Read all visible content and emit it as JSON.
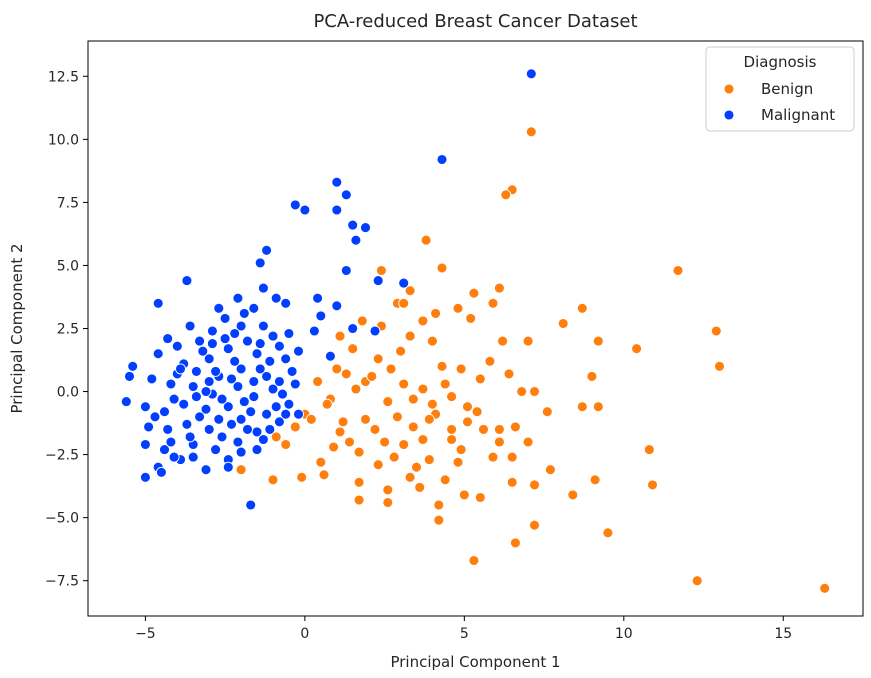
{
  "chart_data": {
    "type": "scatter",
    "title": "PCA-reduced Breast Cancer Dataset",
    "xlabel": "Principal Component 1",
    "ylabel": "Principal Component 2",
    "xlim": [
      -6.8,
      17.5
    ],
    "ylim": [
      -8.9,
      13.9
    ],
    "xticks": [
      -5,
      0,
      5,
      10,
      15
    ],
    "xtick_labels": [
      "−5",
      "0",
      "5",
      "10",
      "15"
    ],
    "yticks": [
      -7.5,
      -5.0,
      -2.5,
      0.0,
      2.5,
      5.0,
      7.5,
      10.0,
      12.5
    ],
    "ytick_labels": [
      "−7.5",
      "−5.0",
      "−2.5",
      "0.0",
      "2.5",
      "5.0",
      "7.5",
      "10.0",
      "12.5"
    ],
    "grid": false,
    "legend": {
      "title": "Diagnosis",
      "placement": "top-right",
      "entries": [
        "Benign",
        "Malignant"
      ]
    },
    "series": [
      {
        "name": "Benign",
        "color": "#ff7f0e",
        "points": [
          [
            7.1,
            10.3
          ],
          [
            6.5,
            8.0
          ],
          [
            6.3,
            7.8
          ],
          [
            3.8,
            6.0
          ],
          [
            11.7,
            4.8
          ],
          [
            6.1,
            4.1
          ],
          [
            4.3,
            4.9
          ],
          [
            2.4,
            4.8
          ],
          [
            5.3,
            3.9
          ],
          [
            3.3,
            4.0
          ],
          [
            2.9,
            3.5
          ],
          [
            4.8,
            3.3
          ],
          [
            5.9,
            3.5
          ],
          [
            8.7,
            3.3
          ],
          [
            12.9,
            2.4
          ],
          [
            8.1,
            2.7
          ],
          [
            3.7,
            2.8
          ],
          [
            2.4,
            2.6
          ],
          [
            1.8,
            2.8
          ],
          [
            4.0,
            2.0
          ],
          [
            6.2,
            2.0
          ],
          [
            7.0,
            2.0
          ],
          [
            9.2,
            2.0
          ],
          [
            10.4,
            1.7
          ],
          [
            13.0,
            1.0
          ],
          [
            1.5,
            1.7
          ],
          [
            2.3,
            1.3
          ],
          [
            3.0,
            1.6
          ],
          [
            4.3,
            1.0
          ],
          [
            5.8,
            1.2
          ],
          [
            6.4,
            0.7
          ],
          [
            9.0,
            0.6
          ],
          [
            1.0,
            0.9
          ],
          [
            1.9,
            0.4
          ],
          [
            3.1,
            0.3
          ],
          [
            4.6,
            -0.2
          ],
          [
            5.5,
            0.5
          ],
          [
            7.2,
            0.0
          ],
          [
            0.4,
            0.4
          ],
          [
            0.8,
            -0.3
          ],
          [
            1.6,
            0.1
          ],
          [
            2.6,
            -0.4
          ],
          [
            4.1,
            -0.9
          ],
          [
            5.1,
            -0.6
          ],
          [
            7.6,
            -0.8
          ],
          [
            8.7,
            -0.6
          ],
          [
            9.2,
            -0.6
          ],
          [
            1.2,
            -1.2
          ],
          [
            2.2,
            -1.5
          ],
          [
            3.4,
            -1.4
          ],
          [
            4.6,
            -1.5
          ],
          [
            6.1,
            -1.5
          ],
          [
            6.6,
            -1.4
          ],
          [
            0.0,
            -0.9
          ],
          [
            0.9,
            -2.2
          ],
          [
            2.5,
            -2.0
          ],
          [
            3.7,
            -1.9
          ],
          [
            4.9,
            -2.3
          ],
          [
            6.1,
            -2.0
          ],
          [
            7.0,
            -2.0
          ],
          [
            10.8,
            -2.3
          ],
          [
            0.5,
            -2.8
          ],
          [
            1.7,
            -2.4
          ],
          [
            2.8,
            -2.6
          ],
          [
            3.5,
            -3.0
          ],
          [
            4.8,
            -2.8
          ],
          [
            5.9,
            -2.6
          ],
          [
            7.7,
            -3.1
          ],
          [
            9.1,
            -3.5
          ],
          [
            -0.1,
            -3.4
          ],
          [
            1.7,
            -3.6
          ],
          [
            2.6,
            -3.9
          ],
          [
            3.6,
            -3.8
          ],
          [
            5.0,
            -4.1
          ],
          [
            6.5,
            -3.6
          ],
          [
            7.2,
            -3.7
          ],
          [
            8.4,
            -4.1
          ],
          [
            10.9,
            -3.7
          ],
          [
            -1.0,
            -3.5
          ],
          [
            1.7,
            -4.3
          ],
          [
            2.6,
            -4.4
          ],
          [
            4.2,
            -4.5
          ],
          [
            4.2,
            -5.1
          ],
          [
            5.5,
            -4.2
          ],
          [
            7.2,
            -5.3
          ],
          [
            9.5,
            -5.6
          ],
          [
            6.6,
            -6.0
          ],
          [
            5.3,
            -6.7
          ],
          [
            12.3,
            -7.5
          ],
          [
            16.3,
            -7.8
          ],
          [
            -2.0,
            -3.1
          ],
          [
            -0.9,
            -1.8
          ],
          [
            0.2,
            -1.1
          ],
          [
            1.1,
            -1.6
          ],
          [
            2.9,
            -1.0
          ],
          [
            3.9,
            -1.1
          ],
          [
            4.9,
            0.9
          ],
          [
            5.6,
            -1.5
          ],
          [
            0.7,
            -0.5
          ],
          [
            1.3,
            0.7
          ],
          [
            2.1,
            0.6
          ],
          [
            3.7,
            0.1
          ],
          [
            4.4,
            0.3
          ],
          [
            6.8,
            0.0
          ],
          [
            1.1,
            2.2
          ],
          [
            3.3,
            2.2
          ],
          [
            4.1,
            3.1
          ],
          [
            3.1,
            3.5
          ],
          [
            5.2,
            2.9
          ],
          [
            2.7,
            0.9
          ],
          [
            3.4,
            -0.3
          ],
          [
            4.0,
            -0.5
          ],
          [
            5.4,
            -0.8
          ],
          [
            -0.6,
            -2.1
          ],
          [
            1.9,
            -1.1
          ],
          [
            2.3,
            -2.9
          ],
          [
            3.1,
            -2.1
          ],
          [
            3.9,
            -2.7
          ],
          [
            4.4,
            -3.5
          ],
          [
            5.1,
            -1.2
          ],
          [
            6.5,
            -2.6
          ],
          [
            -0.3,
            -1.4
          ],
          [
            0.6,
            -3.3
          ],
          [
            1.4,
            -2.0
          ],
          [
            3.3,
            -3.4
          ],
          [
            4.6,
            -1.9
          ]
        ]
      },
      {
        "name": "Malignant",
        "color": "#023eff",
        "points": [
          [
            7.1,
            12.6
          ],
          [
            4.3,
            9.2
          ],
          [
            1.0,
            8.3
          ],
          [
            1.3,
            7.8
          ],
          [
            1.0,
            7.2
          ],
          [
            -0.3,
            7.4
          ],
          [
            0.0,
            7.2
          ],
          [
            1.5,
            6.6
          ],
          [
            1.9,
            6.5
          ],
          [
            1.6,
            6.0
          ],
          [
            -1.2,
            5.6
          ],
          [
            -1.4,
            5.1
          ],
          [
            1.3,
            4.8
          ],
          [
            -3.7,
            4.4
          ],
          [
            -1.3,
            4.1
          ],
          [
            2.3,
            4.4
          ],
          [
            3.1,
            4.3
          ],
          [
            -4.6,
            3.5
          ],
          [
            -2.1,
            3.7
          ],
          [
            -0.9,
            3.7
          ],
          [
            0.4,
            3.7
          ],
          [
            -2.7,
            3.3
          ],
          [
            -1.6,
            3.3
          ],
          [
            -0.6,
            3.5
          ],
          [
            1.0,
            3.4
          ],
          [
            0.5,
            3.0
          ],
          [
            2.2,
            2.4
          ],
          [
            -3.6,
            2.6
          ],
          [
            -2.9,
            2.4
          ],
          [
            -2.0,
            2.6
          ],
          [
            -1.3,
            2.6
          ],
          [
            -0.5,
            2.3
          ],
          [
            0.3,
            2.4
          ],
          [
            1.5,
            2.5
          ],
          [
            -4.3,
            2.1
          ],
          [
            -3.3,
            2.0
          ],
          [
            -2.5,
            2.1
          ],
          [
            -1.8,
            2.0
          ],
          [
            -0.8,
            1.8
          ],
          [
            0.8,
            1.4
          ],
          [
            -4.6,
            1.5
          ],
          [
            -3.8,
            1.1
          ],
          [
            -3.0,
            1.3
          ],
          [
            -2.4,
            1.7
          ],
          [
            -1.5,
            1.5
          ],
          [
            -0.6,
            1.3
          ],
          [
            -5.4,
            1.0
          ],
          [
            -4.0,
            0.7
          ],
          [
            -3.4,
            0.8
          ],
          [
            -2.7,
            0.6
          ],
          [
            -2.0,
            0.9
          ],
          [
            -1.2,
            0.6
          ],
          [
            -0.3,
            0.3
          ],
          [
            -5.5,
            0.6
          ],
          [
            -4.8,
            0.5
          ],
          [
            -4.2,
            0.3
          ],
          [
            -3.5,
            0.2
          ],
          [
            -2.9,
            -0.1
          ],
          [
            -2.1,
            0.2
          ],
          [
            -1.6,
            -0.2
          ],
          [
            -0.7,
            -0.1
          ],
          [
            -5.6,
            -0.4
          ],
          [
            -5.0,
            -0.6
          ],
          [
            -4.4,
            -0.8
          ],
          [
            -3.8,
            -0.5
          ],
          [
            -3.1,
            -0.7
          ],
          [
            -2.4,
            -0.6
          ],
          [
            -1.7,
            -0.8
          ],
          [
            -0.9,
            -0.6
          ],
          [
            -0.2,
            -0.9
          ],
          [
            -4.9,
            -1.4
          ],
          [
            -4.3,
            -1.5
          ],
          [
            -3.7,
            -1.3
          ],
          [
            -3.0,
            -1.5
          ],
          [
            -2.3,
            -1.3
          ],
          [
            -1.5,
            -1.6
          ],
          [
            -0.8,
            -1.2
          ],
          [
            -5.0,
            -2.1
          ],
          [
            -4.4,
            -2.3
          ],
          [
            -3.5,
            -2.1
          ],
          [
            -2.8,
            -2.3
          ],
          [
            -2.1,
            -2.0
          ],
          [
            -1.3,
            -1.9
          ],
          [
            -4.6,
            -3.0
          ],
          [
            -3.9,
            -2.7
          ],
          [
            -3.1,
            -3.1
          ],
          [
            -2.4,
            -2.7
          ],
          [
            -5.0,
            -3.4
          ],
          [
            -4.5,
            -3.2
          ],
          [
            -1.7,
            -4.5
          ],
          [
            -3.4,
            -0.2
          ],
          [
            -2.6,
            -0.3
          ],
          [
            -1.9,
            -0.4
          ],
          [
            -1.0,
            0.1
          ],
          [
            -4.1,
            -0.3
          ],
          [
            -3.3,
            -1.0
          ],
          [
            -2.7,
            -1.1
          ],
          [
            -2.0,
            -1.1
          ],
          [
            -1.2,
            -0.9
          ],
          [
            -0.5,
            -0.5
          ],
          [
            -3.9,
            0.9
          ],
          [
            -3.2,
            1.6
          ],
          [
            -2.2,
            1.2
          ],
          [
            -1.4,
            0.9
          ],
          [
            -0.4,
            0.8
          ],
          [
            -4.7,
            -1.0
          ],
          [
            -3.6,
            -1.8
          ],
          [
            -2.6,
            -1.8
          ],
          [
            -1.8,
            -1.5
          ],
          [
            -1.1,
            -1.5
          ],
          [
            -4.0,
            1.8
          ],
          [
            -2.9,
            1.9
          ],
          [
            -2.2,
            2.3
          ],
          [
            -1.0,
            2.2
          ],
          [
            -0.2,
            1.6
          ],
          [
            -3.0,
            0.4
          ],
          [
            -2.3,
            0.5
          ],
          [
            -1.6,
            0.4
          ],
          [
            -0.8,
            0.4
          ],
          [
            -3.5,
            -2.6
          ],
          [
            -2.0,
            -2.4
          ],
          [
            -1.5,
            -2.3
          ],
          [
            -4.2,
            -2.0
          ],
          [
            -0.6,
            -0.9
          ],
          [
            -2.5,
            2.9
          ],
          [
            -1.9,
            3.1
          ],
          [
            -2.4,
            -3.0
          ],
          [
            -4.1,
            -2.6
          ],
          [
            -1.1,
            1.2
          ],
          [
            -3.1,
            0.0
          ],
          [
            -2.8,
            0.8
          ],
          [
            -1.4,
            1.9
          ]
        ]
      }
    ]
  }
}
